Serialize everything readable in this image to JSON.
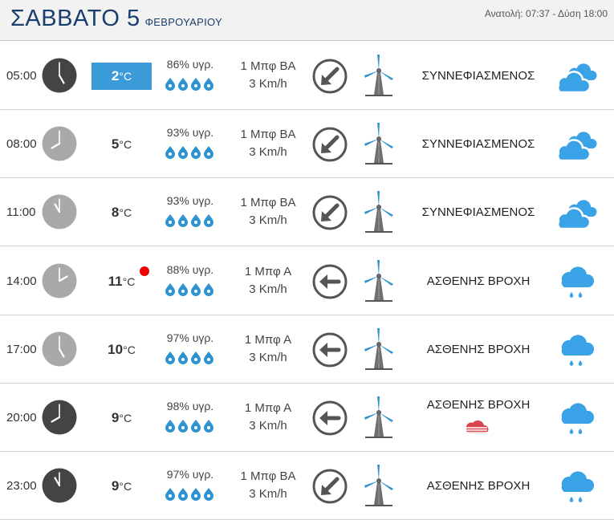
{
  "header": {
    "day": "ΣΑΒΒΑΤΟ 5",
    "month": "ΦΕΒΡΟΥΑΡΙΟΥ",
    "sun_times": "Ανατολή: 07:37  - Δύση 18:00"
  },
  "colors": {
    "accent_blue": "#3a9bd8",
    "title_navy": "#1a3e6e",
    "clock_dark": "#444444",
    "clock_light": "#a9a9a9",
    "turbine_blue": "#2f93d0",
    "rain_blue": "#3aa3e8",
    "alert_red": "#e00000"
  },
  "rows": [
    {
      "time": "05:00",
      "clock": "dark",
      "clock_hour": 5,
      "temp": "2",
      "temp_unit": "°C",
      "temp_highlight": true,
      "humidity": "86% υγρ.",
      "humidity_drops": 4,
      "wind_force": "1 Μπφ ΒΑ",
      "wind_speed": "3 Km/h",
      "wind_arrow": "arrow-down-left",
      "condition": "ΣΥΝΝΕΦΙΑΣΜΕΝΟΣ",
      "icon": "cloudy-icon"
    },
    {
      "time": "08:00",
      "clock": "light",
      "clock_hour": 8,
      "temp": "5",
      "temp_unit": "°C",
      "temp_highlight": false,
      "humidity": "93% υγρ.",
      "humidity_drops": 4,
      "wind_force": "1 Μπφ ΒΑ",
      "wind_speed": "3 Km/h",
      "wind_arrow": "arrow-down-left",
      "condition": "ΣΥΝΝΕΦΙΑΣΜΕΝΟΣ",
      "icon": "cloudy-icon"
    },
    {
      "time": "11:00",
      "clock": "light",
      "clock_hour": 11,
      "temp": "8",
      "temp_unit": "°C",
      "temp_highlight": false,
      "humidity": "93% υγρ.",
      "humidity_drops": 4,
      "wind_force": "1 Μπφ ΒΑ",
      "wind_speed": "3 Km/h",
      "wind_arrow": "arrow-down-left",
      "condition": "ΣΥΝΝΕΦΙΑΣΜΕΝΟΣ",
      "icon": "cloudy-icon"
    },
    {
      "time": "14:00",
      "clock": "light",
      "clock_hour": 2,
      "temp": "11",
      "temp_unit": "°C",
      "temp_highlight": false,
      "alert": true,
      "humidity": "88% υγρ.",
      "humidity_drops": 4,
      "wind_force": "1 Μπφ Α",
      "wind_speed": "3 Km/h",
      "wind_arrow": "arrow-left",
      "condition": "ΑΣΘΕΝΗΣ ΒΡΟΧΗ",
      "icon": "light-rain-icon"
    },
    {
      "time": "17:00",
      "clock": "light",
      "clock_hour": 5,
      "temp": "10",
      "temp_unit": "°C",
      "temp_highlight": false,
      "humidity": "97% υγρ.",
      "humidity_drops": 4,
      "wind_force": "1 Μπφ Α",
      "wind_speed": "3 Km/h",
      "wind_arrow": "arrow-left",
      "condition": "ΑΣΘΕΝΗΣ ΒΡΟΧΗ",
      "icon": "light-rain-icon"
    },
    {
      "time": "20:00",
      "clock": "dark",
      "clock_hour": 8,
      "temp": "9",
      "temp_unit": "°C",
      "temp_highlight": false,
      "humidity": "98% υγρ.",
      "humidity_drops": 4,
      "wind_force": "1 Μπφ Α",
      "wind_speed": "3 Km/h",
      "wind_arrow": "arrow-left",
      "condition": "ΑΣΘΕΝΗΣ ΒΡΟΧΗ",
      "storm_marker": "thunderstorm-cloud-icon",
      "icon": "light-rain-icon"
    },
    {
      "time": "23:00",
      "clock": "dark",
      "clock_hour": 11,
      "temp": "9",
      "temp_unit": "°C",
      "temp_highlight": false,
      "humidity": "97% υγρ.",
      "humidity_drops": 4,
      "wind_force": "1 Μπφ ΒΑ",
      "wind_speed": "3 Km/h",
      "wind_arrow": "arrow-down-left",
      "condition": "ΑΣΘΕΝΗΣ ΒΡΟΧΗ",
      "icon": "light-rain-icon"
    }
  ]
}
